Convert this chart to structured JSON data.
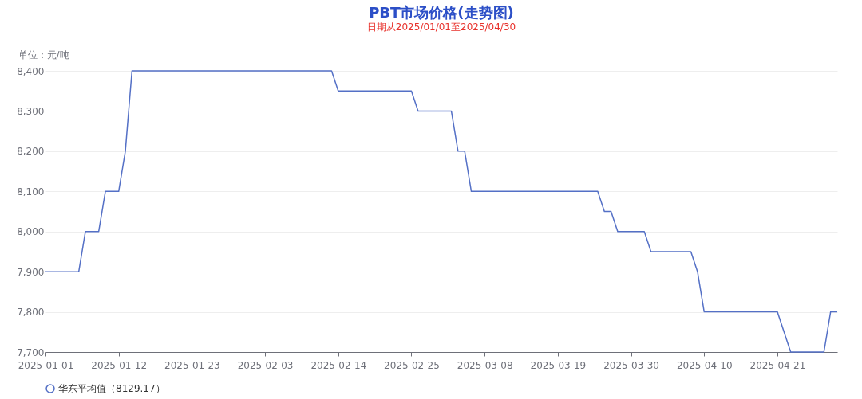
{
  "chart_data": {
    "type": "line",
    "title": "PBT市场价格(走势图)",
    "subtitle": "日期从2025/01/01至2025/04/30",
    "ylabel": "单位：元/吨",
    "x": [
      "2025-01-01",
      "2025-01-06",
      "2025-01-07",
      "2025-01-09",
      "2025-01-10",
      "2025-01-12",
      "2025-01-13",
      "2025-01-14",
      "2025-02-13",
      "2025-02-14",
      "2025-02-25",
      "2025-02-26",
      "2025-03-03",
      "2025-03-04",
      "2025-03-05",
      "2025-03-06",
      "2025-03-25",
      "2025-03-26",
      "2025-03-27",
      "2025-03-28",
      "2025-04-01",
      "2025-04-02",
      "2025-04-08",
      "2025-04-09",
      "2025-04-10",
      "2025-04-21",
      "2025-04-23",
      "2025-04-28",
      "2025-04-29",
      "2025-04-30"
    ],
    "series": [
      {
        "name": "华东平均值（8129.17）",
        "color": "#5470c6",
        "values": [
          7900,
          7900,
          8000,
          8000,
          8100,
          8100,
          8200,
          8400,
          8400,
          8350,
          8350,
          8300,
          8300,
          8200,
          8200,
          8100,
          8100,
          8050,
          8050,
          8000,
          8000,
          7950,
          7950,
          7900,
          7800,
          7800,
          7700,
          7700,
          7800,
          7800
        ]
      }
    ],
    "xlim": [
      "2025-01-01",
      "2025-04-30"
    ],
    "xticks": [
      "2025-01-01",
      "2025-01-12",
      "2025-01-23",
      "2025-02-03",
      "2025-02-14",
      "2025-02-25",
      "2025-03-08",
      "2025-03-19",
      "2025-03-30",
      "2025-04-10",
      "2025-04-21"
    ],
    "ylim": [
      7700,
      8400
    ],
    "yticks": [
      {
        "value": 7700,
        "label": "7,700"
      },
      {
        "value": 7800,
        "label": "7,800"
      },
      {
        "value": 7900,
        "label": "7,900"
      },
      {
        "value": 8000,
        "label": "8,000"
      },
      {
        "value": 8100,
        "label": "8,100"
      },
      {
        "value": 8200,
        "label": "8,200"
      },
      {
        "value": 8300,
        "label": "8,300"
      },
      {
        "value": 8400,
        "label": "8,400"
      }
    ],
    "grid": "y",
    "legend": "bottom"
  }
}
